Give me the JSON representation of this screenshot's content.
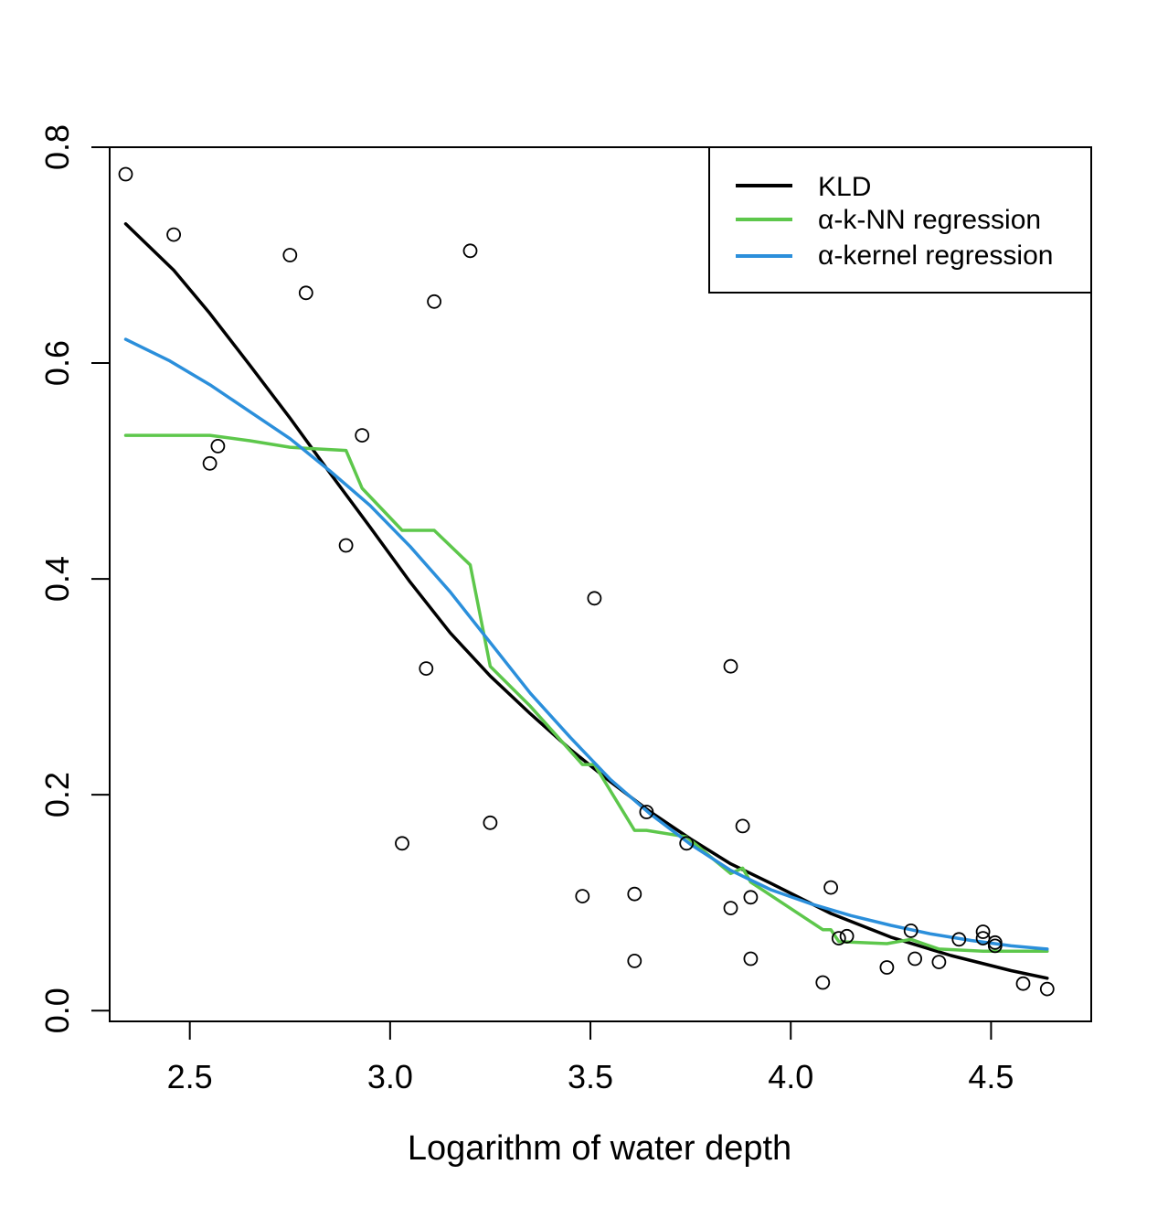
{
  "chart_data": {
    "type": "scatter",
    "title": "",
    "xlabel": "Logarithm of water depth",
    "ylabel": "",
    "xlim": [
      2.3,
      4.75
    ],
    "ylim": [
      -0.01,
      0.8
    ],
    "x_ticks": [
      2.5,
      3.0,
      3.5,
      4.0,
      4.5
    ],
    "x_tick_labels": [
      "2.5",
      "3.0",
      "3.5",
      "4.0",
      "4.5"
    ],
    "y_ticks": [
      0.0,
      0.2,
      0.4,
      0.6,
      0.8
    ],
    "y_tick_labels": [
      "0.0",
      "0.2",
      "0.4",
      "0.6",
      "0.8"
    ],
    "grid": false,
    "legend_position": "top-right",
    "points": [
      {
        "x": 2.34,
        "y": 0.775
      },
      {
        "x": 2.46,
        "y": 0.719
      },
      {
        "x": 2.55,
        "y": 0.507
      },
      {
        "x": 2.57,
        "y": 0.523
      },
      {
        "x": 2.75,
        "y": 0.7
      },
      {
        "x": 2.79,
        "y": 0.665
      },
      {
        "x": 2.89,
        "y": 0.431
      },
      {
        "x": 2.93,
        "y": 0.533
      },
      {
        "x": 3.03,
        "y": 0.155
      },
      {
        "x": 3.09,
        "y": 0.317
      },
      {
        "x": 3.11,
        "y": 0.657
      },
      {
        "x": 3.2,
        "y": 0.704
      },
      {
        "x": 3.25,
        "y": 0.174
      },
      {
        "x": 3.48,
        "y": 0.106
      },
      {
        "x": 3.51,
        "y": 0.382
      },
      {
        "x": 3.61,
        "y": 0.108
      },
      {
        "x": 3.61,
        "y": 0.046
      },
      {
        "x": 3.64,
        "y": 0.184
      },
      {
        "x": 3.74,
        "y": 0.155
      },
      {
        "x": 3.85,
        "y": 0.319
      },
      {
        "x": 3.85,
        "y": 0.095
      },
      {
        "x": 3.88,
        "y": 0.171
      },
      {
        "x": 3.9,
        "y": 0.105
      },
      {
        "x": 3.9,
        "y": 0.048
      },
      {
        "x": 4.08,
        "y": 0.026
      },
      {
        "x": 4.1,
        "y": 0.114
      },
      {
        "x": 4.12,
        "y": 0.067
      },
      {
        "x": 4.14,
        "y": 0.069
      },
      {
        "x": 4.24,
        "y": 0.04
      },
      {
        "x": 4.3,
        "y": 0.074
      },
      {
        "x": 4.31,
        "y": 0.048
      },
      {
        "x": 4.37,
        "y": 0.045
      },
      {
        "x": 4.42,
        "y": 0.066
      },
      {
        "x": 4.48,
        "y": 0.073
      },
      {
        "x": 4.48,
        "y": 0.067
      },
      {
        "x": 4.51,
        "y": 0.063
      },
      {
        "x": 4.51,
        "y": 0.06
      },
      {
        "x": 4.58,
        "y": 0.025
      },
      {
        "x": 4.64,
        "y": 0.02
      }
    ],
    "series": [
      {
        "name": "KLD",
        "color": "#000000",
        "x": [
          2.34,
          2.46,
          2.55,
          2.65,
          2.75,
          2.85,
          2.95,
          3.05,
          3.15,
          3.25,
          3.35,
          3.45,
          3.55,
          3.65,
          3.75,
          3.85,
          3.95,
          4.1,
          4.25,
          4.4,
          4.55,
          4.64
        ],
        "y": [
          0.729,
          0.686,
          0.646,
          0.598,
          0.549,
          0.498,
          0.448,
          0.397,
          0.35,
          0.31,
          0.275,
          0.242,
          0.212,
          0.184,
          0.159,
          0.136,
          0.118,
          0.09,
          0.068,
          0.051,
          0.037,
          0.03
        ]
      },
      {
        "name": "α-k-NN regression",
        "color": "#5dc74b",
        "x": [
          2.34,
          2.55,
          2.65,
          2.75,
          2.79,
          2.89,
          2.93,
          3.03,
          3.11,
          3.2,
          3.25,
          3.35,
          3.48,
          3.51,
          3.61,
          3.64,
          3.74,
          3.85,
          3.88,
          3.9,
          4.08,
          4.1,
          4.12,
          4.24,
          4.3,
          4.37,
          4.48,
          4.51,
          4.64
        ],
        "y": [
          0.533,
          0.533,
          0.528,
          0.522,
          0.521,
          0.519,
          0.484,
          0.445,
          0.445,
          0.413,
          0.319,
          0.282,
          0.228,
          0.228,
          0.167,
          0.167,
          0.161,
          0.127,
          0.132,
          0.119,
          0.075,
          0.075,
          0.064,
          0.062,
          0.066,
          0.057,
          0.055,
          0.055,
          0.055
        ]
      },
      {
        "name": "α-kernel regression",
        "color": "#2b8fdb",
        "x": [
          2.34,
          2.45,
          2.55,
          2.65,
          2.75,
          2.85,
          2.95,
          3.05,
          3.15,
          3.25,
          3.35,
          3.45,
          3.55,
          3.65,
          3.75,
          3.85,
          3.95,
          4.05,
          4.15,
          4.25,
          4.35,
          4.45,
          4.55,
          4.64
        ],
        "y": [
          0.622,
          0.602,
          0.58,
          0.555,
          0.53,
          0.5,
          0.468,
          0.43,
          0.388,
          0.341,
          0.294,
          0.253,
          0.214,
          0.182,
          0.154,
          0.13,
          0.112,
          0.099,
          0.088,
          0.079,
          0.071,
          0.065,
          0.06,
          0.057
        ]
      }
    ]
  }
}
